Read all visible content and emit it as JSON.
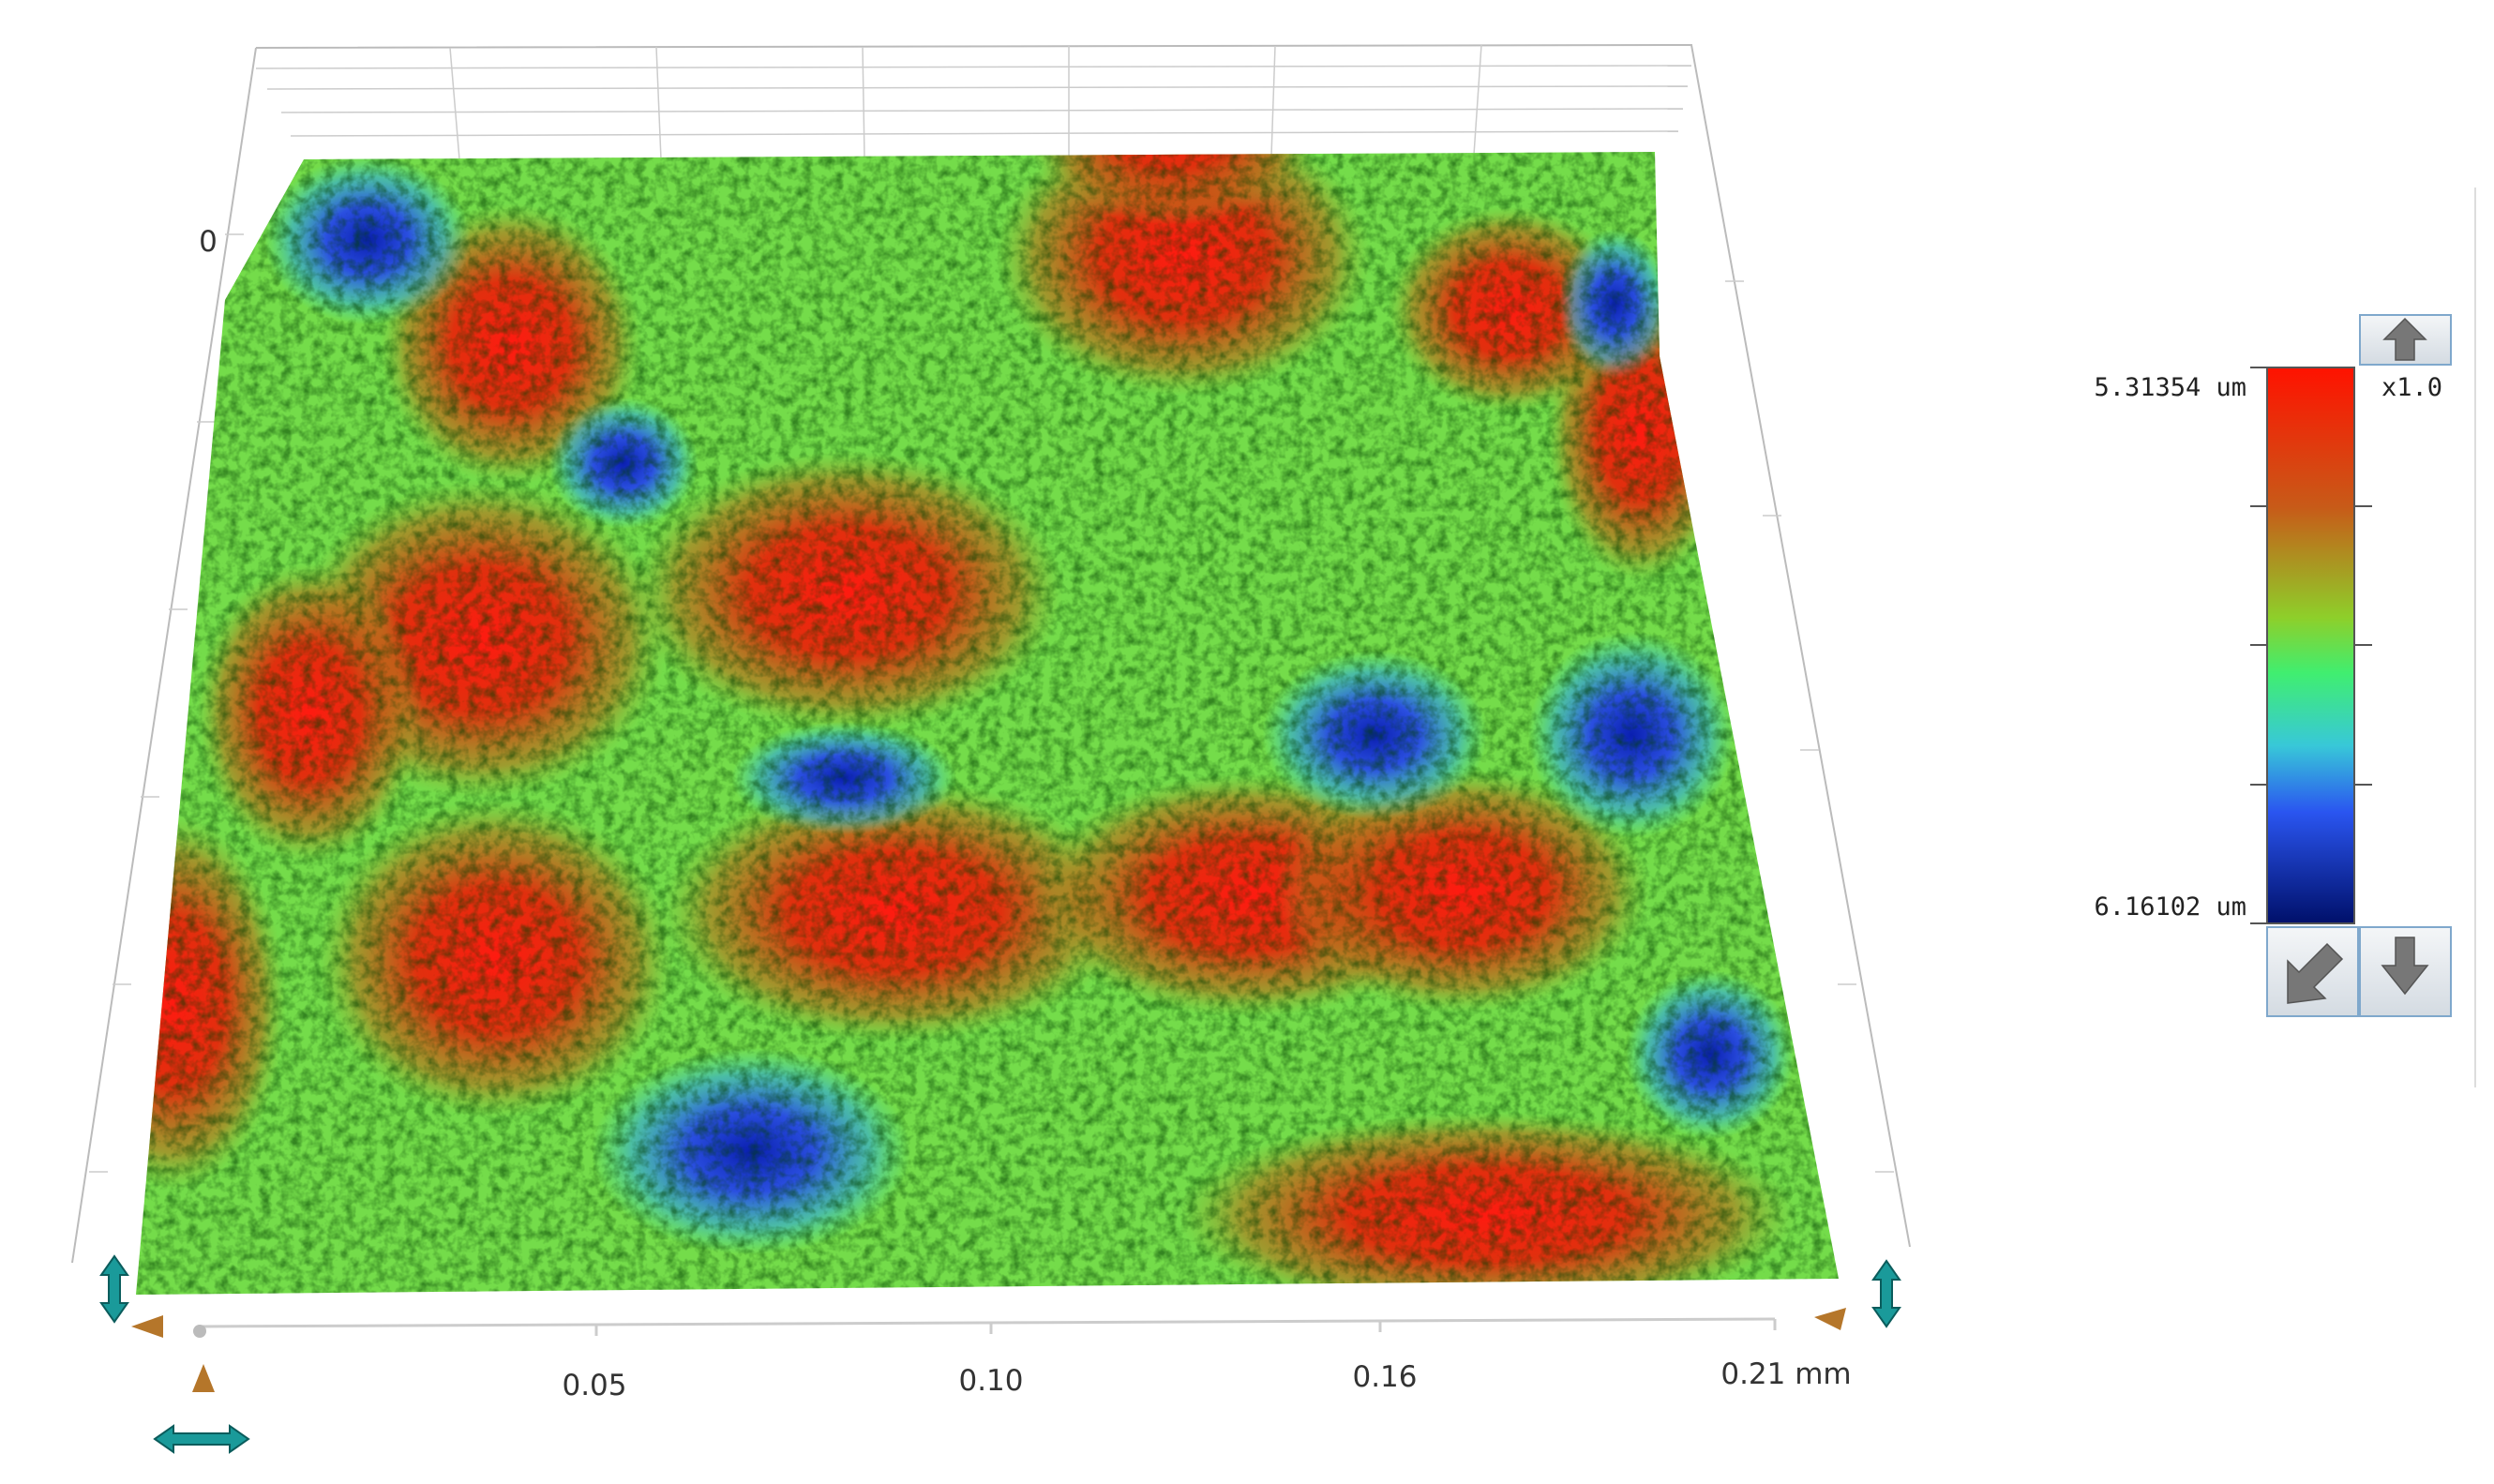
{
  "plot": {
    "z_label": "0",
    "x_tick_labels": [
      "0.05",
      "0.10",
      "0.16",
      "0.21 mm"
    ]
  },
  "colorbar": {
    "max_label": "5.31354 um",
    "min_label": "6.16102 um",
    "scale": "x1.0"
  }
}
